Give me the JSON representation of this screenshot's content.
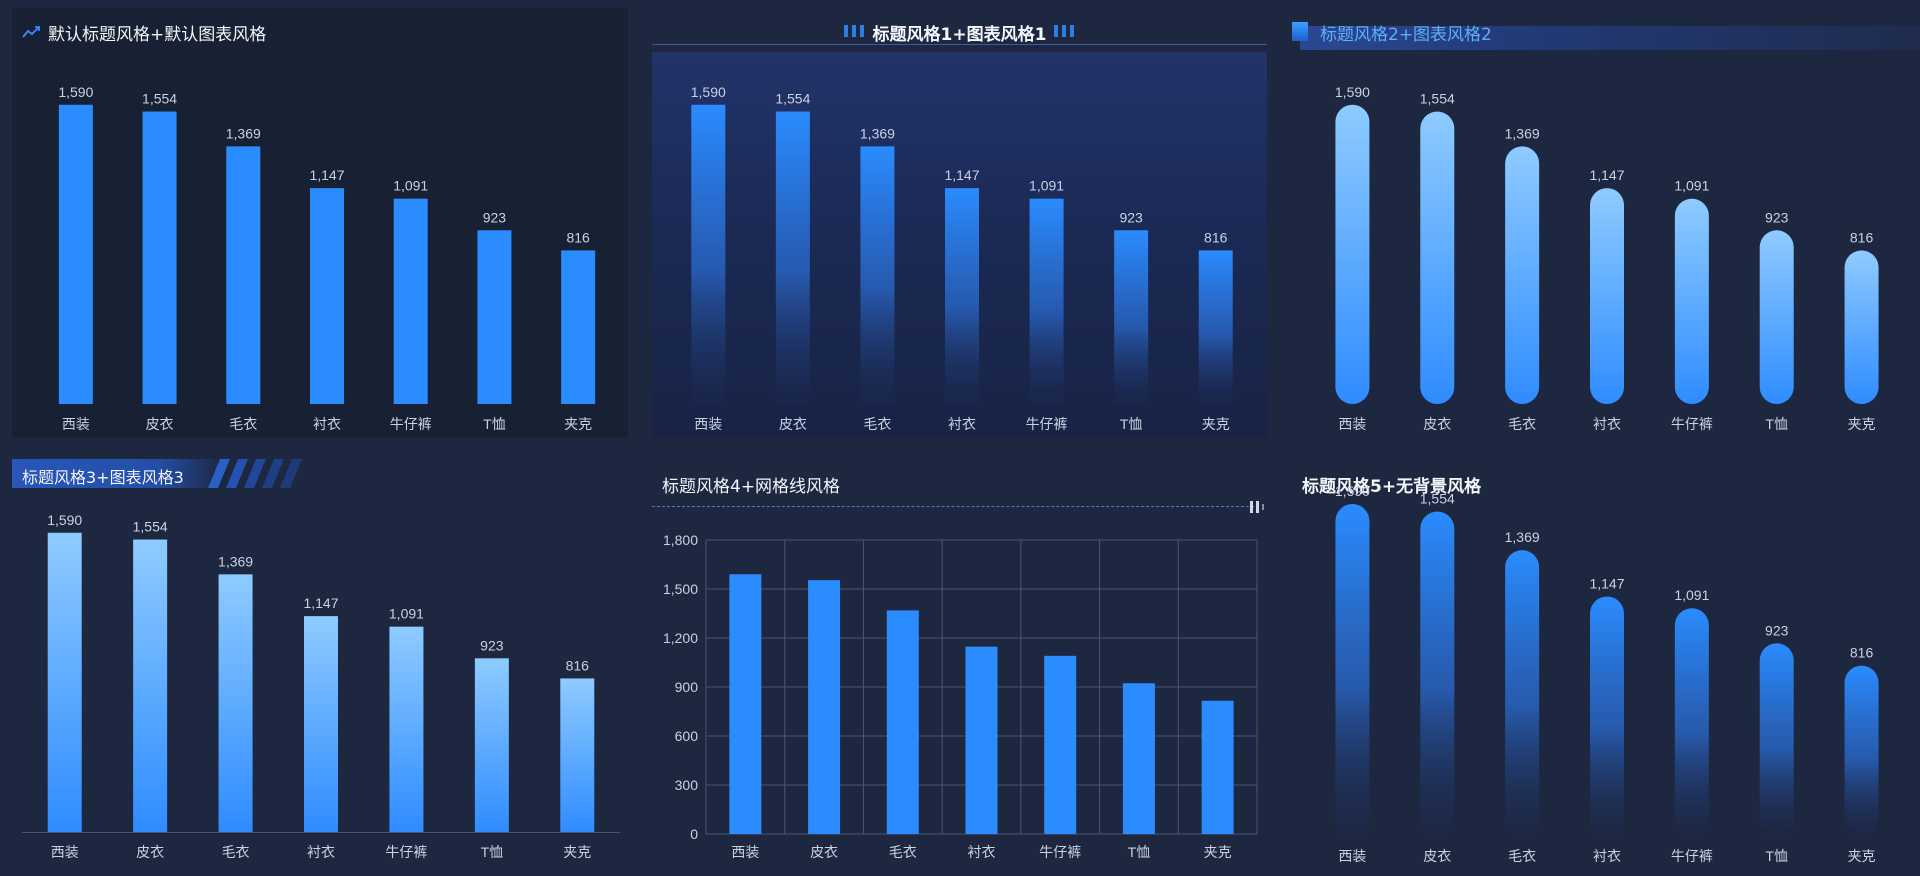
{
  "panels": [
    {
      "title": "默认标题风格+默认图表风格"
    },
    {
      "title": "标题风格1+图表风格1"
    },
    {
      "title": "标题风格2+图表风格2"
    },
    {
      "title": "标题风格3+图表风格3"
    },
    {
      "title": "标题风格4+网格线风格"
    },
    {
      "title": "标题风格5+无背景风格"
    }
  ],
  "colors": {
    "page_bg": "#1d2740",
    "bar_solid": "#2a8cff",
    "bar_light_top": "#8ecbff",
    "bar_light_bottom": "#2f8cff",
    "title_accent": "#5bb0ff"
  },
  "chart_data": [
    {
      "type": "bar",
      "style": "solid",
      "categories": [
        "西装",
        "皮衣",
        "毛衣",
        "衬衣",
        "牛仔裤",
        "T恤",
        "夹克"
      ],
      "values": [
        1590,
        1554,
        1369,
        1147,
        1091,
        923,
        816
      ],
      "title": "默认标题风格+默认图表风格",
      "data_labels": true,
      "grid": false
    },
    {
      "type": "bar",
      "style": "gradient-fade",
      "categories": [
        "西装",
        "皮衣",
        "毛衣",
        "衬衣",
        "牛仔裤",
        "T恤",
        "夹克"
      ],
      "values": [
        1590,
        1554,
        1369,
        1147,
        1091,
        923,
        816
      ],
      "title": "标题风格1+图表风格1",
      "data_labels": true,
      "grid": false
    },
    {
      "type": "bar",
      "style": "rounded-light",
      "categories": [
        "西装",
        "皮衣",
        "毛衣",
        "衬衣",
        "牛仔裤",
        "T恤",
        "夹克"
      ],
      "values": [
        1590,
        1554,
        1369,
        1147,
        1091,
        923,
        816
      ],
      "title": "标题风格2+图表风格2",
      "data_labels": true,
      "grid": false
    },
    {
      "type": "bar",
      "style": "light-gradient",
      "categories": [
        "西装",
        "皮衣",
        "毛衣",
        "衬衣",
        "牛仔裤",
        "T恤",
        "夹克"
      ],
      "values": [
        1590,
        1554,
        1369,
        1147,
        1091,
        923,
        816
      ],
      "title": "标题风格3+图表风格3",
      "data_labels": true,
      "grid": false
    },
    {
      "type": "bar",
      "style": "grid",
      "categories": [
        "西装",
        "皮衣",
        "毛衣",
        "衬衣",
        "牛仔裤",
        "T恤",
        "夹克"
      ],
      "values": [
        1590,
        1554,
        1369,
        1147,
        1091,
        923,
        816
      ],
      "title": "标题风格4+网格线风格",
      "data_labels": false,
      "grid": true,
      "ylim": [
        0,
        1800
      ],
      "yticks": [
        "0",
        "300",
        "600",
        "900",
        "1,200",
        "1,500",
        "1,800"
      ]
    },
    {
      "type": "bar",
      "style": "rounded-fade",
      "categories": [
        "西装",
        "皮衣",
        "毛衣",
        "衬衣",
        "牛仔裤",
        "T恤",
        "夹克"
      ],
      "values": [
        1590,
        1554,
        1369,
        1147,
        1091,
        923,
        816
      ],
      "title": "标题风格5+无背景风格",
      "data_labels": true,
      "grid": false
    }
  ]
}
